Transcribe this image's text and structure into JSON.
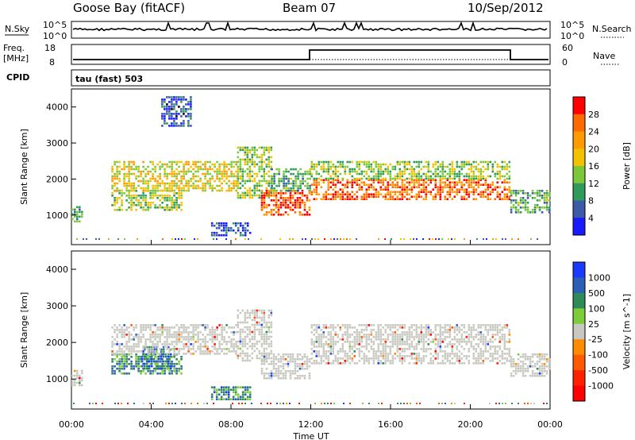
{
  "header": {
    "station": "Goose Bay (fitACF)",
    "beam": "Beam 07",
    "date": "10/Sep/2012"
  },
  "status_panels": {
    "nsky_label": "N.Sky",
    "nsearch_label": "N.Search",
    "noise_ticks": [
      "10^5",
      "10^0"
    ],
    "freq_label": "Freq.",
    "freq_unit": "[MHz]",
    "freq_ticks": [
      "18",
      "8"
    ],
    "nave_label": "Nave",
    "nave_ticks": [
      "60",
      "0"
    ],
    "cpid_label": "CPID",
    "cpid_value": "tau (fast) 503"
  },
  "chart_data": [
    {
      "type": "heatmap",
      "name": "power",
      "ylabel": "Slant Range [km]",
      "xlabel": "",
      "x_ticks": [
        "00:00",
        "04:00",
        "08:00",
        "12:00",
        "16:00",
        "20:00",
        "00:00"
      ],
      "xlim_hours": [
        0,
        24
      ],
      "ylim_km": [
        180,
        4500
      ],
      "y_ticks": [
        1000,
        2000,
        3000,
        4000
      ],
      "colorbar": {
        "label": "Power [dB]",
        "ticks": [
          "28",
          "24",
          "20",
          "16",
          "12",
          "8",
          "4"
        ],
        "colors": [
          "#ff0000",
          "#ff6a00",
          "#ff9a00",
          "#f2c200",
          "#7cc83a",
          "#2f9a5a",
          "#3c5aa8",
          "#1a1aff"
        ]
      },
      "regions": [
        {
          "t0": 0.0,
          "t1": 0.5,
          "r0": 850,
          "r1": 1250,
          "level": 0.35
        },
        {
          "t0": 2.0,
          "t1": 5.5,
          "r0": 1150,
          "r1": 1700,
          "level": 0.45
        },
        {
          "t0": 2.0,
          "t1": 8.3,
          "r0": 1700,
          "r1": 2500,
          "level": 0.55
        },
        {
          "t0": 4.5,
          "t1": 6.0,
          "r0": 3500,
          "r1": 4300,
          "level": 0.15
        },
        {
          "t0": 7.0,
          "t1": 9.0,
          "r0": 450,
          "r1": 800,
          "level": 0.15
        },
        {
          "t0": 8.3,
          "t1": 10.0,
          "r0": 1500,
          "r1": 2900,
          "level": 0.45
        },
        {
          "t0": 9.5,
          "t1": 12.0,
          "r0": 1000,
          "r1": 1700,
          "level": 0.85
        },
        {
          "t0": 10.0,
          "t1": 12.0,
          "r0": 1700,
          "r1": 2300,
          "level": 0.35
        },
        {
          "t0": 12.0,
          "t1": 22.0,
          "r0": 1450,
          "r1": 2000,
          "level": 0.82
        },
        {
          "t0": 12.0,
          "t1": 22.0,
          "r0": 2000,
          "r1": 2500,
          "level": 0.45
        },
        {
          "t0": 22.0,
          "t1": 24.0,
          "r0": 1050,
          "r1": 1700,
          "level": 0.35
        }
      ]
    },
    {
      "type": "heatmap",
      "name": "velocity",
      "ylabel": "Slant Range [km]",
      "xlabel": "Time UT",
      "x_ticks": [
        "00:00",
        "04:00",
        "08:00",
        "12:00",
        "16:00",
        "20:00",
        "00:00"
      ],
      "xlim_hours": [
        0,
        24
      ],
      "ylim_km": [
        180,
        4500
      ],
      "y_ticks": [
        1000,
        2000,
        3000,
        4000
      ],
      "colorbar": {
        "label": "Velocity [m s^-1]",
        "ticks": [
          "1000",
          "500",
          "100",
          "25",
          "-25",
          "-100",
          "-500",
          "-1000"
        ],
        "colors": [
          "#1a3aff",
          "#2c60b8",
          "#2e8b57",
          "#7ccd3a",
          "#c8c8c0",
          "#ff8c00",
          "#ff5a00",
          "#ff2000",
          "#ff0000"
        ]
      },
      "regions": [
        {
          "t0": 0.0,
          "t1": 0.5,
          "r0": 850,
          "r1": 1250,
          "level": 0.5
        },
        {
          "t0": 2.0,
          "t1": 5.5,
          "r0": 1150,
          "r1": 1700,
          "level": 0.75
        },
        {
          "t0": 3.5,
          "t1": 5.0,
          "r0": 1300,
          "r1": 1900,
          "level": 0.85
        },
        {
          "t0": 2.0,
          "t1": 8.3,
          "r0": 1700,
          "r1": 2500,
          "level": 0.5
        },
        {
          "t0": 7.0,
          "t1": 9.0,
          "r0": 450,
          "r1": 800,
          "level": 0.8
        },
        {
          "t0": 8.3,
          "t1": 10.0,
          "r0": 1500,
          "r1": 2900,
          "level": 0.5
        },
        {
          "t0": 9.5,
          "t1": 12.0,
          "r0": 1000,
          "r1": 1700,
          "level": 0.5
        },
        {
          "t0": 12.0,
          "t1": 22.0,
          "r0": 1450,
          "r1": 2500,
          "level": 0.5
        },
        {
          "t0": 22.0,
          "t1": 24.0,
          "r0": 1050,
          "r1": 1700,
          "level": 0.5
        }
      ]
    }
  ]
}
